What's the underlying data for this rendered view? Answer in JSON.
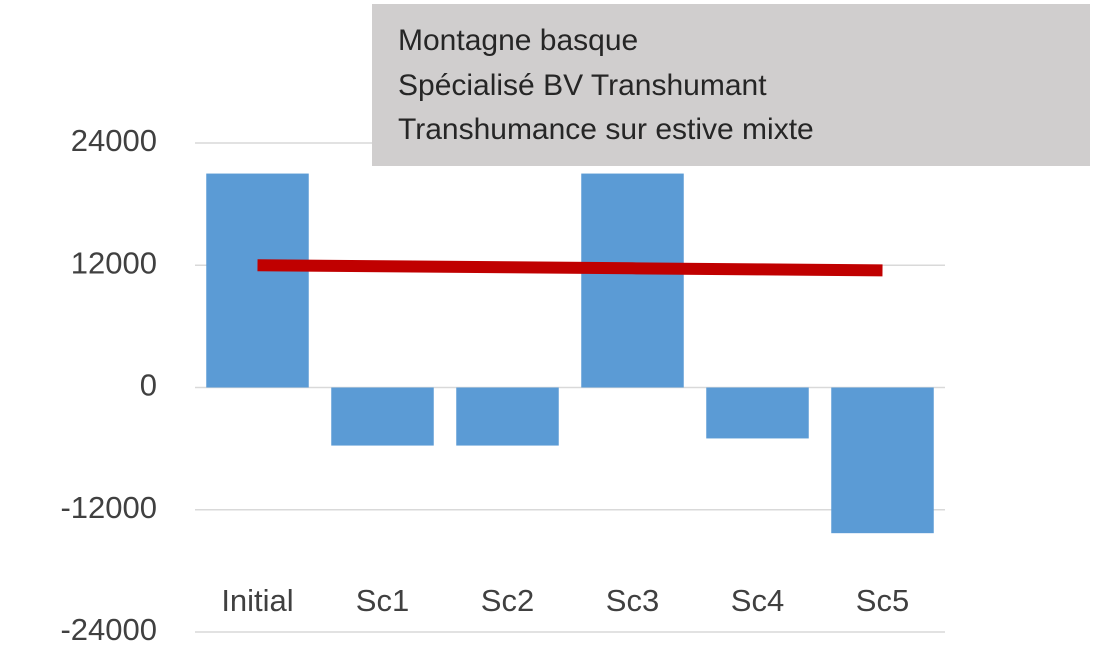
{
  "chart_data": {
    "type": "bar",
    "annotation": [
      "Montagne basque",
      "Spécialisé BV Transhumant",
      "Transhumance  sur estive mixte"
    ],
    "categories": [
      "Initial",
      "Sc1",
      "Sc2",
      "Sc3",
      "Sc4",
      "Sc5"
    ],
    "series": [
      {
        "type": "bar",
        "color": "#5b9bd5",
        "values": [
          21000,
          -5700,
          -5700,
          21000,
          -5000,
          -14300
        ]
      },
      {
        "type": "line",
        "color": "#c00000",
        "values": [
          12000,
          11900,
          11800,
          11700,
          11600,
          11500
        ]
      }
    ],
    "ylim": [
      -24000,
      24000
    ],
    "yticks": [
      -24000,
      -12000,
      0,
      12000,
      24000
    ],
    "grid": true
  }
}
